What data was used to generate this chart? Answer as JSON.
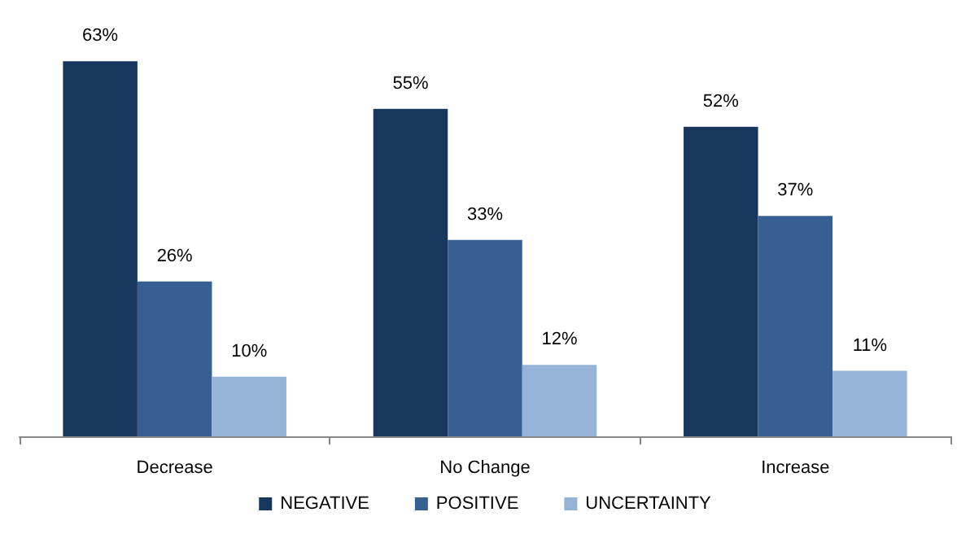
{
  "chart_data": {
    "type": "bar",
    "categories": [
      "Decrease",
      "No Change",
      "Increase"
    ],
    "series": [
      {
        "name": "NEGATIVE",
        "color": "#17375e",
        "values": [
          63,
          55,
          52
        ],
        "value_labels": [
          "63%",
          "55%",
          "52%"
        ]
      },
      {
        "name": "POSITIVE",
        "color": "#376092",
        "values": [
          26,
          33,
          37
        ],
        "value_labels": [
          "26%",
          "33%",
          "37%"
        ]
      },
      {
        "name": "UNCERTAINTY",
        "color": "#95b3d7",
        "values": [
          10,
          12,
          11
        ],
        "value_labels": [
          "10%",
          "12%",
          "11%"
        ]
      }
    ],
    "legend": "bottom",
    "grid": false
  }
}
